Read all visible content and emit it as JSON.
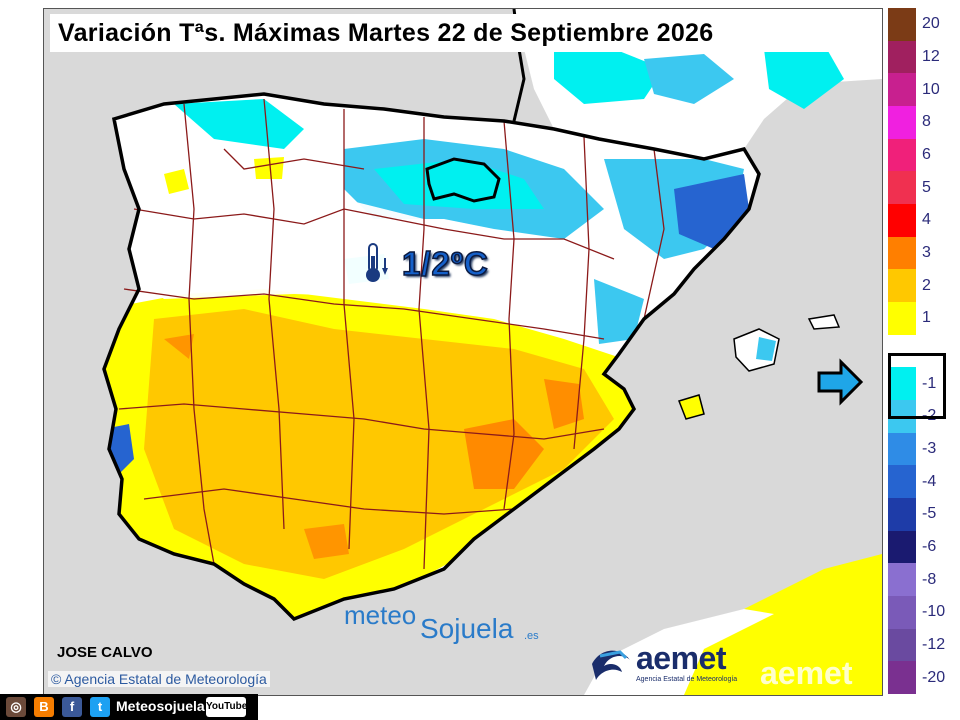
{
  "title": "Variación Tªs. Máximas Martes 22 de Septiembre 2026",
  "highlight_value": "1/2ºC",
  "author": "JOSE CALVO",
  "copyright": "© Agencia Estatal de Meteorología",
  "brand": {
    "meteo": "meteo",
    "sojuela": "Sojuela",
    "domain": ".es"
  },
  "aemet": {
    "name": "aemet",
    "subtitle": "Agencia Estatal de Meteorología",
    "watermark": "aemet"
  },
  "social": {
    "handle": "Meteosojuela",
    "youtube": "YouTube",
    "icons": [
      "instagram-icon",
      "blogger-icon",
      "facebook-icon",
      "twitter-icon"
    ]
  },
  "legend": {
    "items": [
      {
        "label": "20",
        "color": "#7b3b16"
      },
      {
        "label": "12",
        "color": "#a0205f"
      },
      {
        "label": "10",
        "color": "#c8208f"
      },
      {
        "label": "8",
        "color": "#f020e0"
      },
      {
        "label": "6",
        "color": "#f0207a"
      },
      {
        "label": "5",
        "color": "#f03050"
      },
      {
        "label": "4",
        "color": "#ff0000"
      },
      {
        "label": "3",
        "color": "#ff7f00"
      },
      {
        "label": "2",
        "color": "#ffc800"
      },
      {
        "label": "1",
        "color": "#ffff00"
      },
      {
        "label": "",
        "color": "#ffffff"
      },
      {
        "label": "-1",
        "color": "#00f0f0"
      },
      {
        "label": "-2",
        "color": "#3cc8f0"
      },
      {
        "label": "-3",
        "color": "#2f8ce6"
      },
      {
        "label": "-4",
        "color": "#2664d0"
      },
      {
        "label": "-5",
        "color": "#1e3ca8"
      },
      {
        "label": "-6",
        "color": "#1a1a70"
      },
      {
        "label": "-8",
        "color": "#8a6fd0"
      },
      {
        "label": "-10",
        "color": "#7a5ab8"
      },
      {
        "label": "-12",
        "color": "#6a4aa0"
      },
      {
        "label": "-20",
        "color": "#7a3090"
      }
    ],
    "highlighted": [
      "-1",
      "-2"
    ]
  },
  "colors": {
    "land_neutral": "#ffffff",
    "sea": "#d9d9d9",
    "warm_1": "#ffff00",
    "warm_2": "#ffc800",
    "warm_3": "#ff7f00",
    "cool_1": "#00f0f0",
    "cool_2": "#3cc8f0",
    "cool_3": "#2664d0",
    "borders": "#8b1a1a",
    "coast": "#000000"
  }
}
